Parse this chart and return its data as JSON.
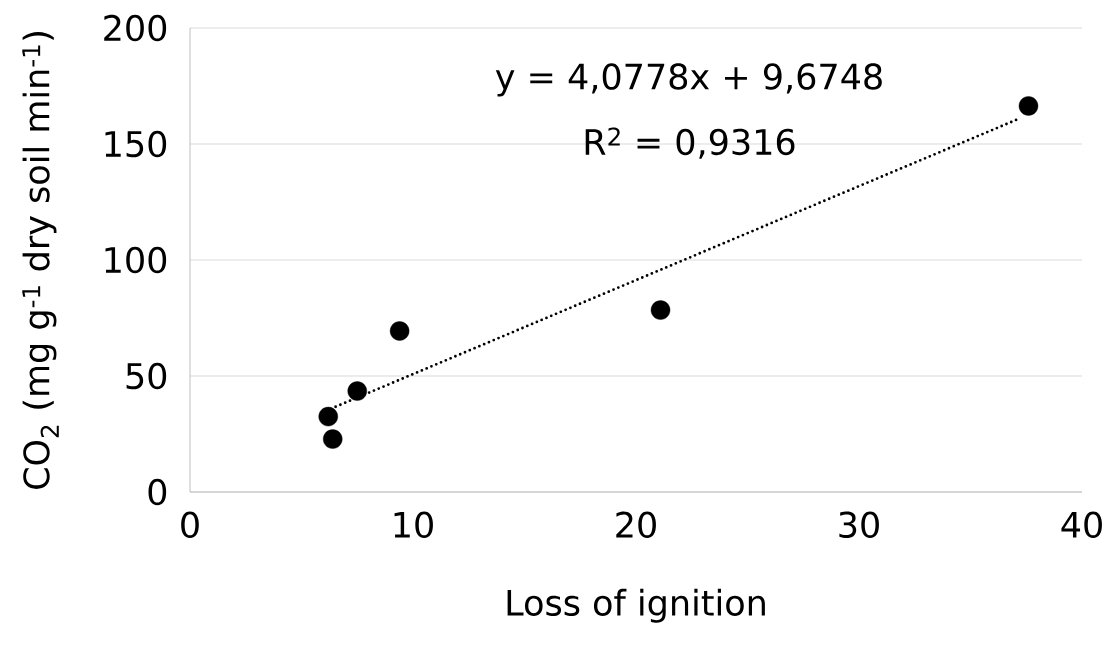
{
  "chart_data": {
    "type": "scatter",
    "xlabel": "Loss of ignition",
    "ylabel": "CO$_{2}$ (mg g$^{-1}$ dry soil min$^{-1}$)",
    "xlim": [
      0,
      40
    ],
    "xticks": [
      0,
      10,
      20,
      30,
      40
    ],
    "ylim": [
      0,
      200
    ],
    "yticks": [
      0,
      50,
      100,
      150,
      200
    ],
    "grid": "y",
    "series": [
      {
        "type": "scatter",
        "marker": "circle",
        "color": "#000000",
        "x": [
          6.2,
          6.4,
          7.5,
          9.4,
          21.1,
          37.6
        ],
        "values": [
          32.5,
          22.8,
          43.5,
          69.4,
          78.4,
          166.4
        ]
      },
      {
        "type": "line",
        "color": "#000000",
        "line_style": "dotted",
        "marker": "none",
        "x": [
          6.1,
          37.2
        ],
        "values": [
          35,
          161
        ]
      }
    ],
    "annotations": [
      {
        "text": "y = 4,0778x + 9,6748"
      },
      {
        "text": "R$^{2}$ = 0,9316"
      }
    ]
  }
}
